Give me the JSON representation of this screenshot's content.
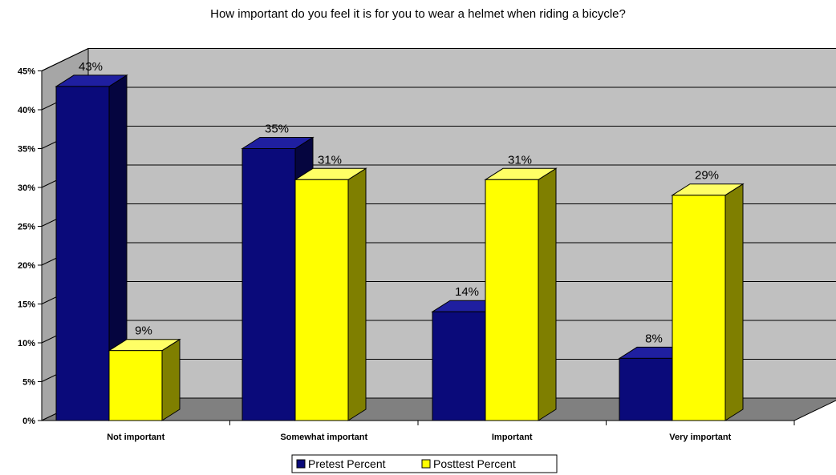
{
  "chart_data": {
    "type": "bar",
    "title": "How important do you feel it is for you to wear a helmet when riding a bicycle?",
    "categories": [
      "Not important",
      "Somewhat important",
      "Important",
      "Very important"
    ],
    "series": [
      {
        "name": "Pretest Percent",
        "values": [
          43,
          35,
          14,
          8
        ],
        "labels": [
          "43%",
          "35%",
          "14%",
          "8%"
        ],
        "color": "#0a0a7a"
      },
      {
        "name": "Posttest Percent",
        "values": [
          9,
          31,
          31,
          29
        ],
        "labels": [
          "9%",
          "31%",
          "31%",
          "29%"
        ],
        "color": "#ffff00"
      }
    ],
    "ylim": [
      0,
      45
    ],
    "yticks": [
      "0%",
      "5%",
      "10%",
      "15%",
      "20%",
      "25%",
      "30%",
      "35%",
      "40%",
      "45%"
    ],
    "legend_position": "bottom",
    "grid": true,
    "style": "3d-clustered-column",
    "colors": {
      "wall": "#c0c0c0",
      "floor": "#808080",
      "pretest_side": "#05053f",
      "posttest_side": "#7f7f00"
    }
  }
}
